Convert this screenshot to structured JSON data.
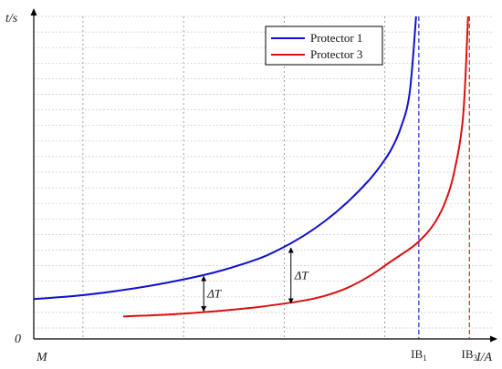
{
  "chart_data": {
    "type": "line",
    "title": "",
    "xlabel": "I/A",
    "ylabel": "t/s",
    "origin_y_label": "0",
    "origin_x_label": "M",
    "xlim": [
      0,
      100
    ],
    "ylim": [
      0,
      100
    ],
    "grid": true,
    "legend_position": "top-right",
    "x_ticks": [
      {
        "label": "IB",
        "sub": "1",
        "value": 86.1
      },
      {
        "label": "IB",
        "sub": "3",
        "value": 97.4
      }
    ],
    "series": [
      {
        "name": "Protector 1",
        "color": "#1010d0",
        "asymptote": 86.1,
        "x": [
          0,
          10,
          20,
          30,
          40,
          50,
          55,
          60,
          65,
          70,
          75,
          78,
          80,
          82,
          84,
          85.5
        ],
        "y": [
          9.3,
          10.4,
          12.2,
          14.6,
          17.7,
          22.1,
          25.3,
          29.3,
          34.2,
          40.2,
          47.5,
          53.0,
          57.5,
          64.0,
          75.0,
          100.0
        ]
      },
      {
        "name": "Protector 3",
        "color": "#d81010",
        "asymptote": 97.4,
        "x": [
          20,
          30,
          40,
          50,
          60,
          65,
          70,
          75,
          80,
          85,
          88,
          90,
          92,
          94,
          96,
          97.1
        ],
        "y": [
          3.7,
          4.3,
          5.3,
          6.7,
          8.7,
          10.3,
          12.8,
          16.6,
          21.5,
          26.4,
          30.6,
          34.6,
          40.4,
          50.0,
          68.0,
          100.0
        ]
      }
    ],
    "annotations": [
      {
        "text": "ΔT",
        "x": 38.0,
        "y_top": 16.9,
        "y_bottom": 5.1
      },
      {
        "text": "ΔT",
        "x": 57.5,
        "y_top": 26.0,
        "y_bottom": 7.7
      }
    ],
    "vertical_gridlines_x": [
      11,
      33.5,
      56,
      78.5
    ]
  }
}
